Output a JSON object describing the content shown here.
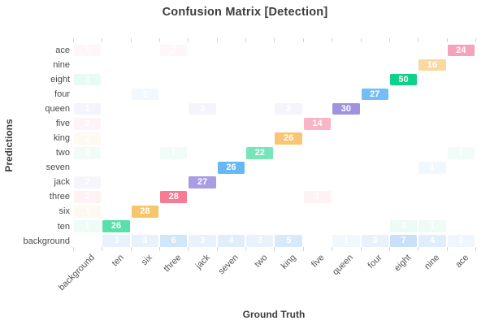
{
  "chart_data": {
    "type": "heatmap",
    "title": "Confusion Matrix [Detection]",
    "xlabel": "Ground Truth",
    "ylabel": "Predictions",
    "legend": "none",
    "grid": false,
    "x_categories": [
      "background",
      "ten",
      "six",
      "three",
      "jack",
      "seven",
      "two",
      "king",
      "five",
      "queen",
      "four",
      "eight",
      "nine",
      "ace"
    ],
    "rows": [
      {
        "label": "ace",
        "color": "#f7a2bb",
        "values": [
          1,
          null,
          null,
          2,
          null,
          null,
          null,
          null,
          null,
          null,
          null,
          null,
          null,
          24
        ]
      },
      {
        "label": "nine",
        "color": "#fad9a1",
        "values": [
          null,
          null,
          null,
          null,
          null,
          null,
          null,
          null,
          null,
          null,
          null,
          null,
          16,
          null
        ]
      },
      {
        "label": "eight",
        "color": "#10d18b",
        "values": [
          2,
          null,
          null,
          null,
          null,
          null,
          null,
          null,
          null,
          null,
          null,
          50,
          null,
          null
        ]
      },
      {
        "label": "four",
        "color": "#73bef6",
        "values": [
          null,
          null,
          2,
          null,
          null,
          null,
          null,
          null,
          null,
          null,
          27,
          null,
          null,
          null
        ]
      },
      {
        "label": "queen",
        "color": "#a092df",
        "values": [
          1,
          null,
          null,
          null,
          3,
          null,
          null,
          2,
          null,
          30,
          null,
          null,
          null,
          null
        ]
      },
      {
        "label": "five",
        "color": "#f9b4c6",
        "values": [
          2,
          null,
          null,
          null,
          null,
          null,
          null,
          null,
          14,
          null,
          null,
          null,
          null,
          null
        ]
      },
      {
        "label": "king",
        "color": "#f7c573",
        "values": [
          2,
          null,
          null,
          null,
          null,
          null,
          null,
          26,
          null,
          null,
          null,
          null,
          null,
          null
        ]
      },
      {
        "label": "two",
        "color": "#78e4ba",
        "values": [
          2,
          null,
          null,
          1,
          null,
          null,
          22,
          null,
          null,
          null,
          null,
          null,
          null,
          1
        ]
      },
      {
        "label": "seven",
        "color": "#67b8f2",
        "values": [
          null,
          null,
          null,
          null,
          null,
          26,
          null,
          null,
          null,
          null,
          null,
          null,
          1,
          null
        ]
      },
      {
        "label": "jack",
        "color": "#a99ce2",
        "values": [
          2,
          null,
          null,
          null,
          27,
          null,
          null,
          null,
          null,
          null,
          null,
          null,
          null,
          null
        ]
      },
      {
        "label": "three",
        "color": "#f77b92",
        "values": [
          2,
          null,
          null,
          28,
          null,
          null,
          null,
          null,
          1,
          null,
          null,
          null,
          null,
          null
        ]
      },
      {
        "label": "six",
        "color": "#f7c56a",
        "values": [
          1,
          null,
          28,
          null,
          null,
          null,
          null,
          null,
          null,
          null,
          null,
          null,
          null,
          null
        ]
      },
      {
        "label": "ten",
        "color": "#59dfaa",
        "values": [
          1,
          26,
          null,
          null,
          null,
          null,
          null,
          null,
          null,
          null,
          null,
          3,
          1,
          null
        ]
      },
      {
        "label": "background",
        "color": "#6fb1ec",
        "alpha_factor": 0.38,
        "values": [
          null,
          3,
          3,
          6,
          3,
          4,
          3,
          5,
          null,
          1,
          3,
          7,
          4,
          2
        ]
      }
    ]
  }
}
